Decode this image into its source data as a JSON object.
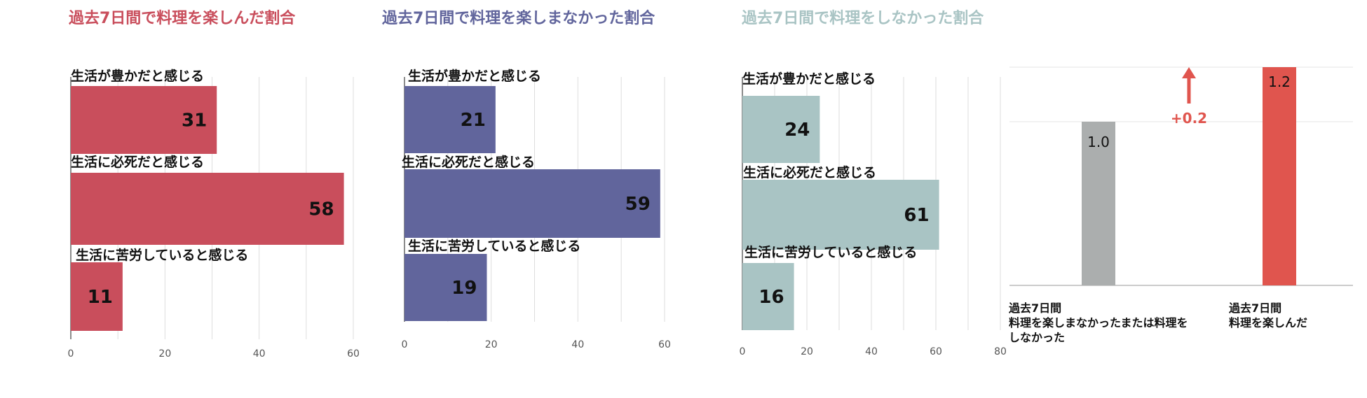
{
  "chart_data": [
    {
      "type": "bar",
      "orientation": "horizontal",
      "title": "過去7日間で料理を楽しんだ割合",
      "color": "#C94E5C",
      "categories": [
        "生活が豊かだと感じる",
        "生活に必死だと感じる",
        "生活に苦労していると感じる"
      ],
      "values": [
        31,
        58,
        11
      ],
      "xlim": [
        0,
        60
      ],
      "xticks": [
        0,
        20,
        40,
        60
      ],
      "grid": true
    },
    {
      "type": "bar",
      "orientation": "horizontal",
      "title": "過去7日間で料理を楽しまなかった割合",
      "color": "#61659C",
      "categories": [
        "生活が豊かだと感じる",
        "生活に必死だと感じる",
        "生活に苦労していると感じる"
      ],
      "values": [
        21,
        59,
        19
      ],
      "xlim": [
        0,
        60
      ],
      "xticks": [
        0,
        20,
        40,
        60
      ],
      "grid": true
    },
    {
      "type": "bar",
      "orientation": "horizontal",
      "title": "過去7日間で料理をしなかった割合",
      "color": "#A9C4C4",
      "title_color": "#A9C4C4",
      "categories": [
        "生活が豊かだと感じる",
        "生活に必死だと感じる",
        "生活に苦労していると感じる"
      ],
      "values": [
        24,
        61,
        16
      ],
      "xlim": [
        0,
        80
      ],
      "xticks": [
        0,
        20,
        40,
        60,
        80
      ],
      "grid": true
    },
    {
      "type": "bar",
      "orientation": "vertical",
      "categories": [
        "過去7日間\n料理を楽しまなかったまたは料理を\nしなかった",
        "過去7日間\n料理を楽しんだ"
      ],
      "values": [
        1.0,
        1.2
      ],
      "value_labels": [
        "1.0",
        "1.2"
      ],
      "colors": [
        "#ABAEAE",
        "#E0554E"
      ],
      "ylim": [
        0,
        1.2
      ],
      "annotation": {
        "text": "+0.2",
        "color": "#E0554E"
      },
      "grid": true
    }
  ]
}
